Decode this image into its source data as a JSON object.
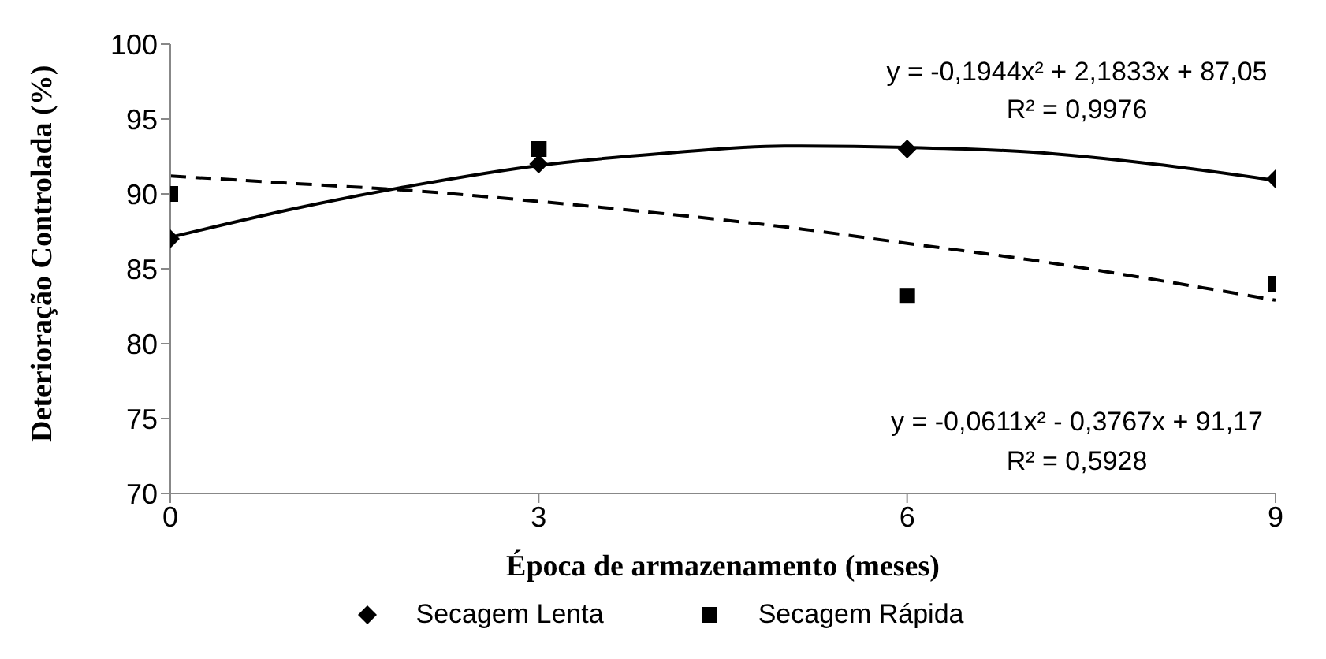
{
  "chart_data": {
    "type": "scatter",
    "xlabel": "Época de armazenamento (meses)",
    "ylabel": "Deterioração Controlada (%)",
    "x": [
      0,
      3,
      6,
      9
    ],
    "xlim": [
      0,
      9
    ],
    "xticks": [
      0,
      3,
      6,
      9
    ],
    "ylim": [
      70,
      100
    ],
    "yticks": [
      70,
      75,
      80,
      85,
      90,
      95,
      100
    ],
    "grid": false,
    "legend": "bottom",
    "series": [
      {
        "name": "Secagem Lenta",
        "color": "#000000",
        "marker": "diamond",
        "values": [
          87,
          92,
          93,
          91
        ]
      },
      {
        "name": "Secagem Rápida",
        "color": "#000000",
        "marker": "square",
        "values": [
          90,
          93,
          83.2,
          84
        ]
      },
      {
        "type": "line",
        "color": "#000000",
        "line_style": "solid",
        "x": [
          0,
          1,
          2,
          3,
          4,
          5,
          6,
          7,
          8,
          9
        ],
        "values": [
          87.1,
          89.0,
          90.6,
          91.9,
          92.7,
          93.2,
          93.1,
          92.8,
          92.0,
          90.9
        ]
      },
      {
        "type": "line",
        "color": "#000000",
        "line_style": "dashed",
        "x": [
          0,
          1,
          2,
          3,
          4,
          5,
          6,
          7,
          8,
          9
        ],
        "values": [
          91.2,
          90.7,
          90.2,
          89.5,
          88.7,
          87.8,
          86.7,
          85.6,
          84.3,
          82.9
        ]
      }
    ],
    "annotations": [
      "y = -0,1944x² + 2,1833x + 87,05",
      "R² = 0,9976",
      "y = -0,0611x² - 0,3767x + 91,17",
      "R² = 0,5928"
    ]
  }
}
